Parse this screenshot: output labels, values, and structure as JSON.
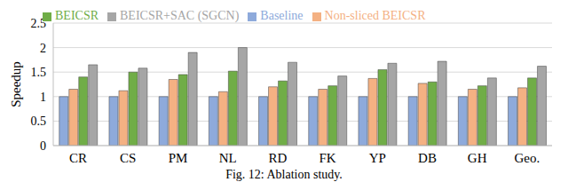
{
  "chart_data": {
    "type": "bar",
    "title": "Fig. 12: Ablation study.",
    "y_label": "Speedup",
    "categories": [
      "CR",
      "CS",
      "PM",
      "NL",
      "RD",
      "FK",
      "YP",
      "DB",
      "GH",
      "Geo."
    ],
    "series": [
      {
        "name": "Baseline",
        "color": "#8eaadb",
        "values": [
          1,
          1,
          1,
          1,
          1,
          1,
          1,
          1,
          1,
          1
        ]
      },
      {
        "name": "Non-sliced BEICSR",
        "color": "#f4b183",
        "values": [
          1.15,
          1.12,
          1.35,
          1.1,
          1.2,
          1.15,
          1.37,
          1.27,
          1.15,
          1.18
        ]
      },
      {
        "name": "BEICSR",
        "color": "#70ad47",
        "values": [
          1.4,
          1.5,
          1.45,
          1.52,
          1.32,
          1.22,
          1.55,
          1.3,
          1.22,
          1.38
        ]
      },
      {
        "name": "BEICSR+SAC (SGCN)",
        "color": "#a6a6a6",
        "values": [
          1.65,
          1.58,
          1.9,
          2.0,
          1.7,
          1.42,
          1.68,
          1.72,
          1.38,
          1.62
        ]
      }
    ],
    "ylim": [
      0,
      2.5
    ],
    "yticks": [
      0,
      0.5,
      1,
      1.5,
      2,
      2.5
    ],
    "grid": true,
    "legend": "top"
  }
}
